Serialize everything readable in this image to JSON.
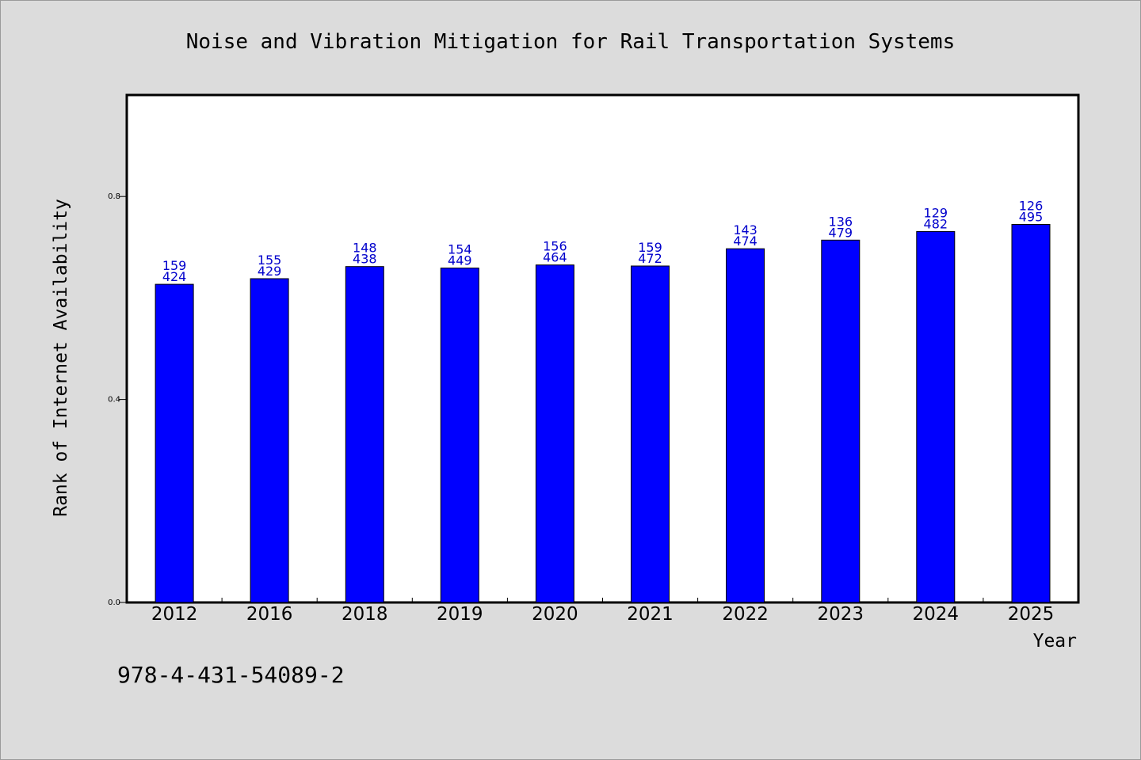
{
  "chart_data": {
    "type": "bar",
    "title": "Noise and Vibration Mitigation for Rail Transportation Systems",
    "xlabel": "Year",
    "ylabel": "Rank of Internet Availability",
    "categories": [
      "2012",
      "2016",
      "2018",
      "2019",
      "2020",
      "2021",
      "2022",
      "2023",
      "2024",
      "2025"
    ],
    "values": [
      0.627,
      0.638,
      0.662,
      0.659,
      0.665,
      0.663,
      0.697,
      0.714,
      0.731,
      0.745
    ],
    "data_labels": [
      [
        "159",
        "424"
      ],
      [
        "155",
        "429"
      ],
      [
        "148",
        "438"
      ],
      [
        "154",
        "449"
      ],
      [
        "156",
        "464"
      ],
      [
        "159",
        "472"
      ],
      [
        "143",
        "474"
      ],
      [
        "136",
        "479"
      ],
      [
        "129",
        "482"
      ],
      [
        "126",
        "495"
      ]
    ],
    "ylim": [
      0,
      1.0
    ],
    "yticks": [
      "0.0",
      "0.4",
      "0.8"
    ],
    "grid": false,
    "bar_color": "#0000ff",
    "label_color": "#0000cc"
  },
  "footer": {
    "code": "978-4-431-54089-2"
  }
}
